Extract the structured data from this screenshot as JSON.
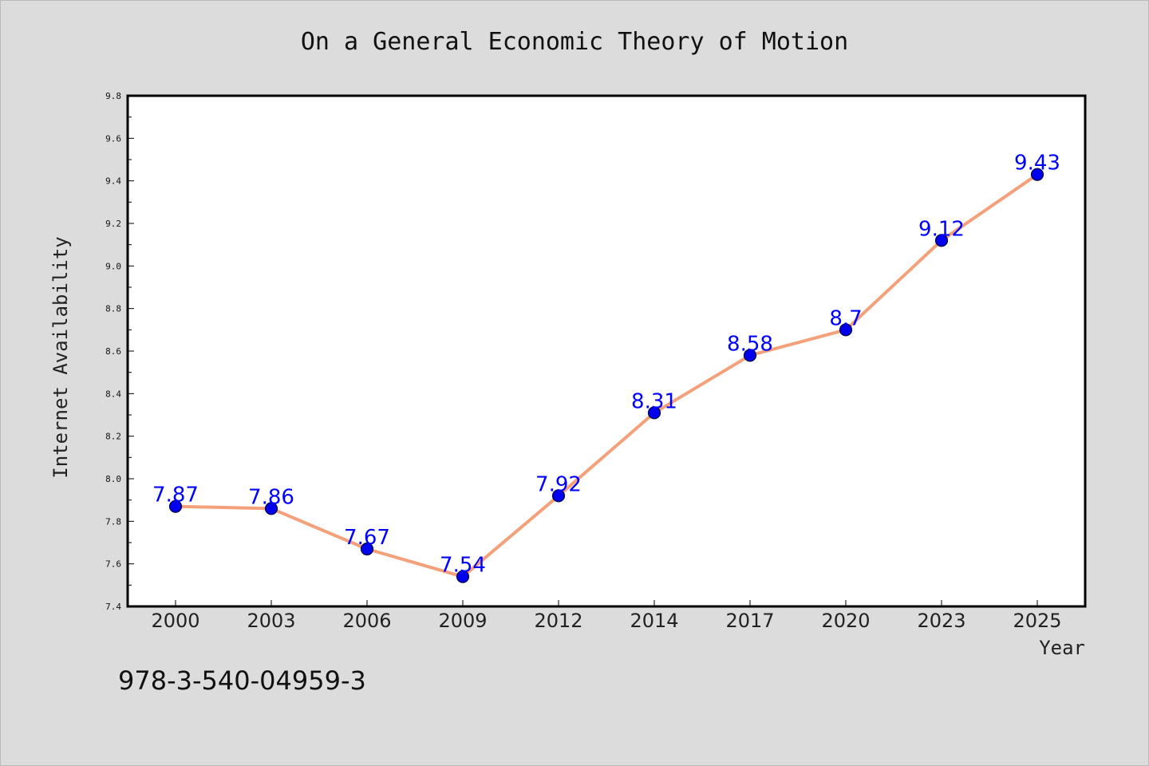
{
  "chart_data": {
    "type": "line",
    "title": "On a General Economic Theory of Motion",
    "xlabel": "Year",
    "ylabel": "Internet Availability",
    "categories": [
      "2000",
      "2003",
      "2006",
      "2009",
      "2012",
      "2014",
      "2017",
      "2020",
      "2023",
      "2025"
    ],
    "values": [
      7.87,
      7.86,
      7.67,
      7.54,
      7.92,
      8.31,
      8.58,
      8.7,
      9.12,
      9.43
    ],
    "data_labels": [
      "7.87",
      "7.86",
      "7.67",
      "7.54",
      "7.92",
      "8.31",
      "8.58",
      "8.7",
      "9.12",
      "9.43"
    ],
    "ylim": [
      7.4,
      9.8
    ],
    "yticks": [
      "7.4",
      "7.6",
      "7.8",
      "8.0",
      "8.2",
      "8.4",
      "8.6",
      "8.8",
      "9.0",
      "9.2",
      "9.4",
      "9.6",
      "9.8"
    ],
    "grid": false,
    "line_color": "#f4a07a",
    "marker_color": "#0000ee",
    "label_color": "#0000ff"
  },
  "footnote": "978-3-540-04959-3"
}
